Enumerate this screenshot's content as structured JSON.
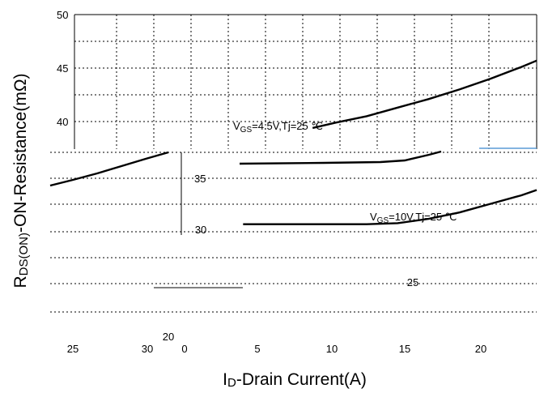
{
  "chart_data": {
    "type": "line",
    "xlabel": "ID-Drain Current(A)",
    "xlabel_parts": [
      "I",
      "D",
      "-Drain Current(A)"
    ],
    "ylabel": "RDS(ON)-ON-Resistance(mΩ)",
    "ylabel_parts": [
      "R",
      "DS(ON)",
      "-ON-Resistance(mΩ)"
    ],
    "x_ticks_left": [
      "25",
      "30"
    ],
    "x_ticks": [
      "0",
      "5",
      "10",
      "15",
      "20"
    ],
    "y_ticks": [
      "50",
      "45",
      "40",
      "35"
    ],
    "stray_labels": [
      "20",
      "25",
      "30"
    ],
    "xlim": [
      0,
      23
    ],
    "ylim": [
      20,
      50
    ],
    "grid": true,
    "series": [
      {
        "name": "VGS=4.5V,Tj=25 ℃",
        "name_parts": [
          "V",
          "GS",
          "=4.5V,Tj=25 ℃"
        ],
        "x": [
          8.5,
          10,
          12,
          14,
          16,
          18,
          20,
          22,
          23
        ],
        "y": [
          39.4,
          39.9,
          40.5,
          41.3,
          42.1,
          43.0,
          44.0,
          45.1,
          45.7
        ]
      },
      {
        "name": "VGS=10V,Tj=25 ℃",
        "name_parts": [
          "V",
          "GS",
          "=10V,Tj=25 ℃"
        ],
        "x": [
          4,
          6,
          8,
          10,
          12,
          14,
          16,
          18,
          20,
          22,
          23
        ],
        "y": [
          30.4,
          30.4,
          30.4,
          30.4,
          30.4,
          30.5,
          30.9,
          31.5,
          32.3,
          33.1,
          33.6
        ]
      }
    ]
  }
}
